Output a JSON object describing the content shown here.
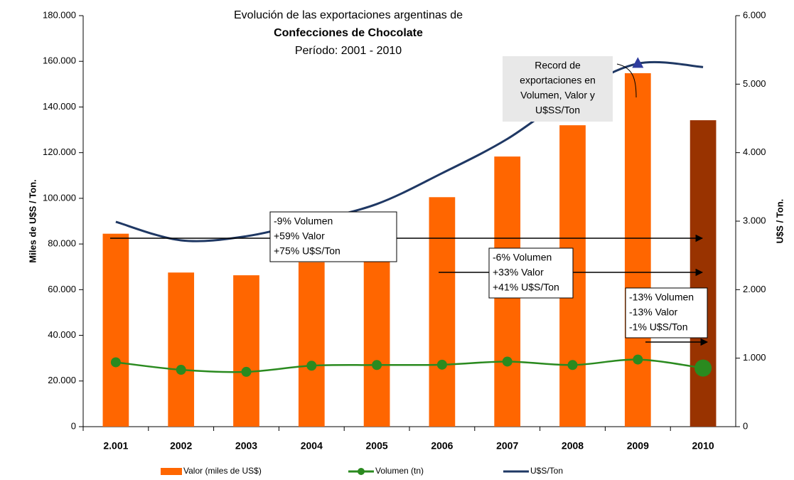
{
  "chart_data": {
    "type": "bar",
    "title": [
      "Evolución de las exportaciones argentinas de",
      "Confecciones de Chocolate",
      "Período: 2001 - 2010"
    ],
    "ylabel": "Miles de U$S / Ton.",
    "y2label": "U$S / Ton.",
    "categories": [
      "2.001",
      "2002",
      "2003",
      "2004",
      "2005",
      "2006",
      "2007",
      "2008",
      "2009",
      "2010"
    ],
    "ylim": [
      0,
      180000
    ],
    "yticks": [
      0,
      {
        "value": 20000,
        "label": "20.000"
      },
      {
        "value": 40000,
        "label": "40.000"
      },
      {
        "value": 60000,
        "label": "60.000"
      },
      {
        "value": 80000,
        "label": "80.000"
      },
      {
        "value": 100000,
        "label": "100.000"
      },
      {
        "value": 120000,
        "label": "120.000"
      },
      {
        "value": 140000,
        "label": "140.000"
      },
      {
        "value": 160000,
        "label": "160.000"
      },
      {
        "value": 180000,
        "label": "180.000"
      }
    ],
    "y2lim": [
      0,
      6000
    ],
    "y2ticks": [
      0,
      {
        "value": 1000,
        "label": "1.000"
      },
      {
        "value": 2000,
        "label": "2.000"
      },
      {
        "value": 3000,
        "label": "3.000"
      },
      {
        "value": 4000,
        "label": "4.000"
      },
      {
        "value": 5000,
        "label": "5.000"
      },
      {
        "value": 6000,
        "label": "6.000"
      }
    ],
    "series": [
      {
        "name": "Valor (miles de US$)",
        "type": "bar",
        "color": "#ff6600",
        "colors": [
          "#ff6600",
          "#ff6600",
          "#ff6600",
          "#ff6600",
          "#ff6600",
          "#ff6600",
          "#ff6600",
          "#ff6600",
          "#ff6600",
          "#993300"
        ],
        "values": [
          84500,
          67500,
          66300,
          72000,
          87000,
          100500,
          118300,
          132000,
          154800,
          134200
        ]
      },
      {
        "name": "Volumen (tn)",
        "type": "line",
        "axis": "y2",
        "color": "#2a8a1f",
        "values": [
          940,
          830,
          800,
          890,
          900,
          905,
          950,
          900,
          980,
          855
        ]
      },
      {
        "name": "U$S/Ton",
        "type": "line",
        "axis": "y2",
        "color": "#1f3864",
        "values": [
          2990,
          2720,
          2780,
          3000,
          3250,
          3700,
          4200,
          4850,
          5300,
          5250
        ]
      }
    ],
    "annotations": [
      {
        "lines": [
          "Record de",
          "exportaciones en",
          "Volumen, Valor y",
          "U$SS/Ton"
        ]
      },
      {
        "lines": [
          "-9% Volumen",
          "+59% Valor",
          "+75% U$S/Ton"
        ]
      },
      {
        "lines": [
          "-6% Volumen",
          "+33% Valor",
          "+41% U$S/Ton"
        ]
      },
      {
        "lines": [
          "-13% Volumen",
          "-13% Valor",
          "-1% U$S/Ton"
        ]
      }
    ]
  }
}
